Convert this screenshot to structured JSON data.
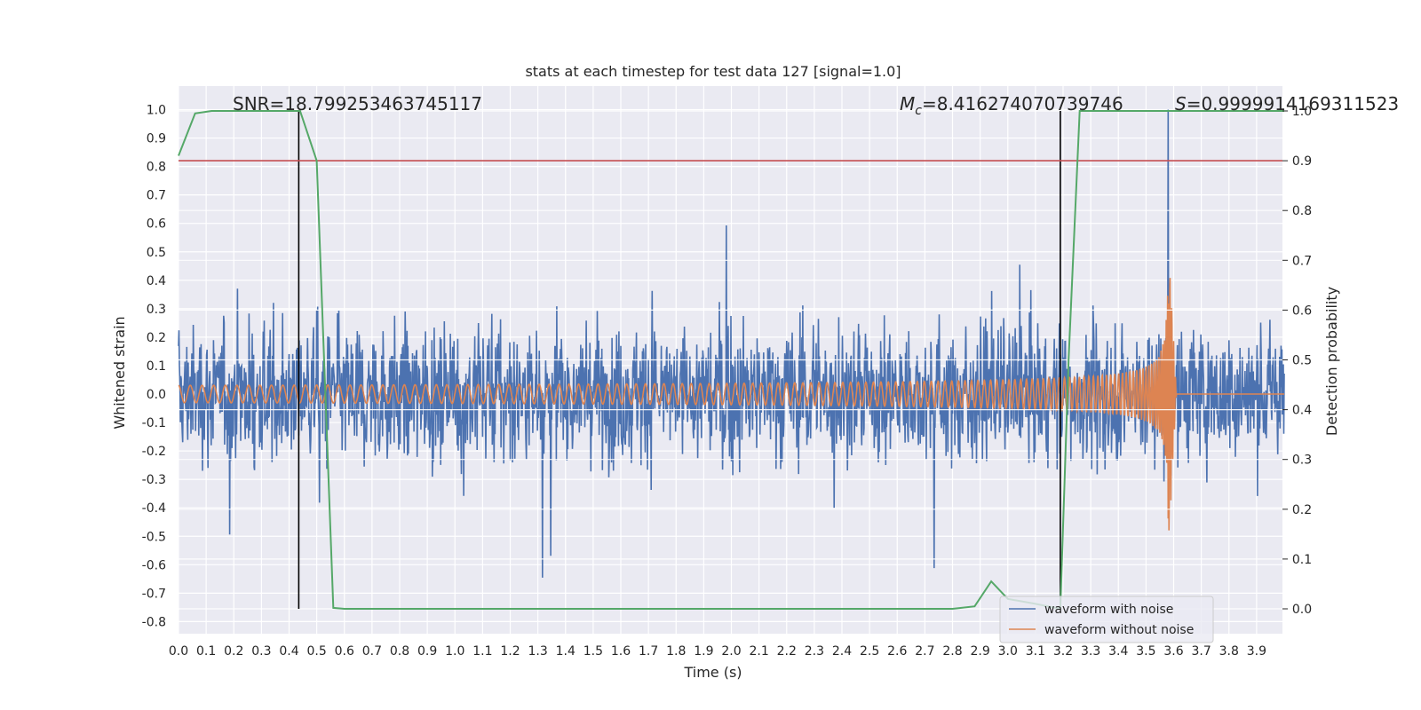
{
  "chart_data": {
    "type": "line",
    "title": "stats at each timestep for test data 127 [signal=1.0]",
    "xlabel": "Time (s)",
    "ylabel": "Whitened strain",
    "y2label": "Detection probability",
    "xlim": [
      0.0,
      4.0
    ],
    "ylim": [
      -0.85,
      1.08
    ],
    "y2lim": [
      -0.05,
      1.05
    ],
    "x_ticks": [
      "0.0",
      "0.1",
      "0.2",
      "0.3",
      "0.4",
      "0.5",
      "0.6",
      "0.7",
      "0.8",
      "0.9",
      "1.0",
      "1.1",
      "1.2",
      "1.3",
      "1.4",
      "1.5",
      "1.6",
      "1.7",
      "1.8",
      "1.9",
      "2.0",
      "2.1",
      "2.2",
      "2.3",
      "2.4",
      "2.5",
      "2.6",
      "2.7",
      "2.8",
      "2.9",
      "3.0",
      "3.1",
      "3.2",
      "3.3",
      "3.4",
      "3.5",
      "3.6",
      "3.7",
      "3.8",
      "3.9"
    ],
    "y_ticks": [
      "1.0",
      "0.9",
      "0.8",
      "0.7",
      "0.6",
      "0.5",
      "0.4",
      "0.3",
      "0.2",
      "0.1",
      "0.0",
      "-0.1",
      "-0.2",
      "-0.3",
      "-0.4",
      "-0.5",
      "-0.6",
      "-0.7",
      "-0.8"
    ],
    "y2_ticks": [
      "1.0",
      "0.9",
      "0.8",
      "0.7",
      "0.6",
      "0.5",
      "0.4",
      "0.3",
      "0.2",
      "0.1",
      "0.0"
    ],
    "annotations": {
      "snr": "SNR=18.799253463745117",
      "mc_symbol": "M",
      "mc_sub": "c",
      "mc_value": "=8.416274070739746",
      "s_symbol": "S",
      "s_value": "=0.9999914169311523"
    },
    "vertical_lines_x": [
      0.435,
      3.19
    ],
    "threshold_prob": 0.9,
    "series": [
      {
        "name": "waveform with noise",
        "color": "#4c72b0",
        "noise_envelope": 0.45,
        "peak_x": 3.58,
        "peak_y": 1.0
      },
      {
        "name": "waveform without noise",
        "color": "#dd8452",
        "chirp_start_amp": 0.03,
        "chirp_peak_amp": 0.56,
        "merger_x": 3.58
      },
      {
        "name": "detection probability",
        "color": "#55a868",
        "axis": "right",
        "x": [
          0.0,
          0.06,
          0.12,
          0.2,
          0.3,
          0.44,
          0.5,
          0.56,
          0.6,
          0.7,
          1.0,
          1.5,
          2.0,
          2.5,
          2.8,
          2.88,
          2.94,
          3.0,
          3.1,
          3.19,
          3.22,
          3.26,
          3.3,
          3.5,
          3.7,
          4.0
        ],
        "values": [
          0.91,
          0.995,
          1.0,
          1.0,
          1.0,
          1.0,
          0.9,
          0.002,
          0.0,
          0.0,
          0.0,
          0.0,
          0.0,
          0.0,
          0.0,
          0.005,
          0.055,
          0.02,
          0.01,
          0.0,
          0.5,
          1.0,
          1.0,
          1.0,
          1.0,
          1.0
        ]
      }
    ],
    "legend": {
      "position": "bottom-right",
      "entries": [
        "waveform with noise",
        "waveform without noise"
      ]
    },
    "grid": true
  }
}
